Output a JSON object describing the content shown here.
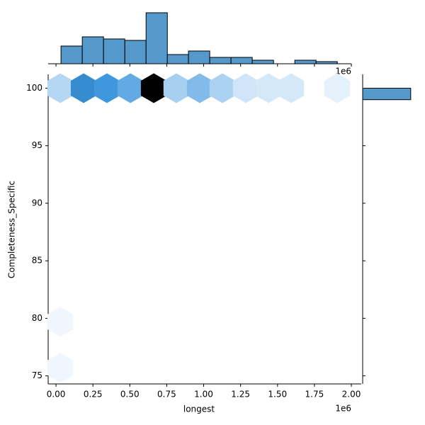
{
  "chart_data": {
    "type": "hexbin",
    "x_label": "longest",
    "y_label": "Completeness_Specific",
    "offset_text": "1e6",
    "xlim": [
      -0.053,
      2.067
    ],
    "ylim": [
      74.3,
      101.2
    ],
    "xticks": [
      {
        "value": 0,
        "label": "0.00"
      },
      {
        "value": 0.25,
        "label": "0.25"
      },
      {
        "value": 0.5,
        "label": "0.50"
      },
      {
        "value": 0.75,
        "label": "0.75"
      },
      {
        "value": 1,
        "label": "1.00"
      },
      {
        "value": 1.25,
        "label": "1.25"
      },
      {
        "value": 1.5,
        "label": "1.50"
      },
      {
        "value": 1.75,
        "label": "1.75"
      },
      {
        "value": 2,
        "label": "2.00"
      }
    ],
    "yticks": [
      75,
      80,
      85,
      90,
      95,
      100
    ],
    "cmap": [
      "#f4f9fe",
      "#3a94dc",
      "#000000"
    ],
    "hexbin": {
      "x": [
        0.029,
        0.187,
        0.345,
        0.504,
        0.662,
        0.815,
        0.974,
        1.127,
        1.285,
        1.439,
        1.592,
        1.904,
        0.029,
        0.029
      ],
      "y": [
        100,
        100,
        100,
        100,
        100,
        100,
        100,
        100,
        100,
        100,
        100,
        100,
        79.7,
        75.7
      ],
      "values": [
        12,
        38,
        35,
        28,
        72,
        15,
        22,
        14,
        7,
        6,
        6,
        3,
        1,
        1
      ]
    },
    "marginal_x": {
      "color": "#5499c9",
      "ylim": [
        0,
        75
      ],
      "bins": [
        0.034,
        0.178,
        0.322,
        0.466,
        0.61,
        0.754,
        0.897,
        1.041,
        1.185,
        1.329,
        1.473,
        1.617,
        1.761,
        1.905
      ],
      "counts": [
        25,
        38,
        35,
        33,
        72,
        13,
        18,
        9,
        9,
        5,
        0,
        5,
        3
      ]
    },
    "marginal_y": {
      "color": "#5499c9",
      "xlim": [
        0,
        230
      ],
      "bins": [
        99.0,
        100.0
      ],
      "counts": [
        200
      ]
    }
  }
}
